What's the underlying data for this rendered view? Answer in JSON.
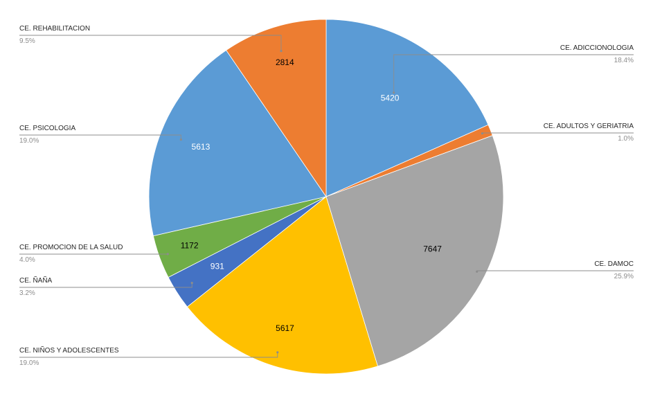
{
  "chart_data": {
    "type": "pie",
    "title": "",
    "slices": [
      {
        "label": "CE. ADICCIONOLOGIA",
        "value": 5420,
        "percent": "18.4%",
        "color": "#5B9BD5",
        "text_color": "#ffffff"
      },
      {
        "label": "CE. ADULTOS Y GERIATRIA",
        "value": 305,
        "percent": "1.0%",
        "color": "#ED7D31",
        "text_color": "#000000"
      },
      {
        "label": "CE. DAMOC",
        "value": 7647,
        "percent": "25.9%",
        "color": "#A5A5A5",
        "text_color": "#000000"
      },
      {
        "label": "CE. NIÑOS Y ADOLESCENTES",
        "value": 5617,
        "percent": "19.0%",
        "color": "#FFC000",
        "text_color": "#000000"
      },
      {
        "label": "CE. ÑAÑA",
        "value": 931,
        "percent": "3.2%",
        "color": "#4472C4",
        "text_color": "#ffffff"
      },
      {
        "label": "CE. PROMOCION DE LA SALUD",
        "value": 1172,
        "percent": "4.0%",
        "color": "#70AD47",
        "text_color": "#000000"
      },
      {
        "label": "CE. PSICOLOGIA",
        "value": 5613,
        "percent": "19.0%",
        "color": "#5B9BD5",
        "text_color": "#ffffff"
      },
      {
        "label": "CE. REHABILITACION",
        "value": 2814,
        "percent": "9.5%",
        "color": "#ED7D31",
        "text_color": "#000000"
      }
    ],
    "visible_value_labels": [
      "5420",
      "",
      "7647",
      "5617",
      "931",
      "1172",
      "5613",
      "2814"
    ],
    "legend": "none",
    "labels": "outside with leader lines"
  }
}
